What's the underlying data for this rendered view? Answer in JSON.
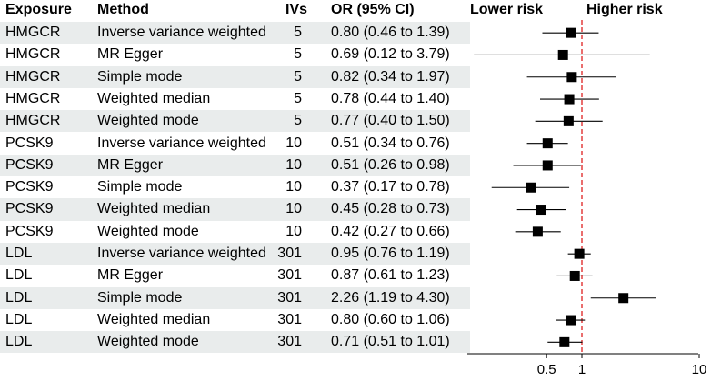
{
  "headers": {
    "exposure": "Exposure",
    "method": "Method",
    "ivs": "IVs",
    "or": "OR (95% CI)",
    "lower": "Lower risk",
    "higher": "Higher risk"
  },
  "rows": [
    {
      "exposure": "HMGCR",
      "method": "Inverse variance weighted",
      "ivs": "5",
      "or_text": "0.80 (0.46 to 1.39)",
      "or": 0.8,
      "lo": 0.46,
      "hi": 1.39
    },
    {
      "exposure": "HMGCR",
      "method": "MR Egger",
      "ivs": "5",
      "or_text": "0.69 (0.12 to 3.79)",
      "or": 0.69,
      "lo": 0.12,
      "hi": 3.79
    },
    {
      "exposure": "HMGCR",
      "method": "Simple mode",
      "ivs": "5",
      "or_text": "0.82 (0.34 to 1.97)",
      "or": 0.82,
      "lo": 0.34,
      "hi": 1.97
    },
    {
      "exposure": "HMGCR",
      "method": "Weighted median",
      "ivs": "5",
      "or_text": "0.78 (0.44 to 1.40)",
      "or": 0.78,
      "lo": 0.44,
      "hi": 1.4
    },
    {
      "exposure": "HMGCR",
      "method": "Weighted mode",
      "ivs": "5",
      "or_text": "0.77 (0.40 to 1.50)",
      "or": 0.77,
      "lo": 0.4,
      "hi": 1.5
    },
    {
      "exposure": "PCSK9",
      "method": "Inverse variance weighted",
      "ivs": "10",
      "or_text": "0.51 (0.34 to 0.76)",
      "or": 0.51,
      "lo": 0.34,
      "hi": 0.76
    },
    {
      "exposure": "PCSK9",
      "method": "MR Egger",
      "ivs": "10",
      "or_text": "0.51 (0.26 to 0.98)",
      "or": 0.51,
      "lo": 0.26,
      "hi": 0.98
    },
    {
      "exposure": "PCSK9",
      "method": "Simple mode",
      "ivs": "10",
      "or_text": "0.37 (0.17 to 0.78)",
      "or": 0.37,
      "lo": 0.17,
      "hi": 0.78
    },
    {
      "exposure": "PCSK9",
      "method": "Weighted median",
      "ivs": "10",
      "or_text": "0.45 (0.28 to 0.73)",
      "or": 0.45,
      "lo": 0.28,
      "hi": 0.73
    },
    {
      "exposure": "PCSK9",
      "method": "Weighted mode",
      "ivs": "10",
      "or_text": "0.42 (0.27 to 0.66)",
      "or": 0.42,
      "lo": 0.27,
      "hi": 0.66
    },
    {
      "exposure": "LDL",
      "method": "Inverse variance weighted",
      "ivs": "301",
      "or_text": "0.95 (0.76 to 1.19)",
      "or": 0.95,
      "lo": 0.76,
      "hi": 1.19
    },
    {
      "exposure": "LDL",
      "method": "MR Egger",
      "ivs": "301",
      "or_text": "0.87 (0.61 to 1.23)",
      "or": 0.87,
      "lo": 0.61,
      "hi": 1.23
    },
    {
      "exposure": "LDL",
      "method": "Simple mode",
      "ivs": "301",
      "or_text": "2.26 (1.19 to 4.30)",
      "or": 2.26,
      "lo": 1.19,
      "hi": 4.3
    },
    {
      "exposure": "LDL",
      "method": "Weighted median",
      "ivs": "301",
      "or_text": "0.80 (0.60 to 1.06)",
      "or": 0.8,
      "lo": 0.6,
      "hi": 1.06
    },
    {
      "exposure": "LDL",
      "method": "Weighted mode",
      "ivs": "301",
      "or_text": "0.71 (0.51 to 1.01)",
      "or": 0.71,
      "lo": 0.51,
      "hi": 1.01
    }
  ],
  "chart_data": {
    "type": "forest",
    "scale": "log",
    "xlim": [
      0.1,
      10
    ],
    "xticks": [
      0.5,
      1,
      10
    ],
    "xtick_labels": [
      "0.5",
      "1",
      "10"
    ],
    "reference_line": 1,
    "reference_color": "#e03030",
    "row_shade_color": "#e9ecec",
    "marker": "square"
  }
}
